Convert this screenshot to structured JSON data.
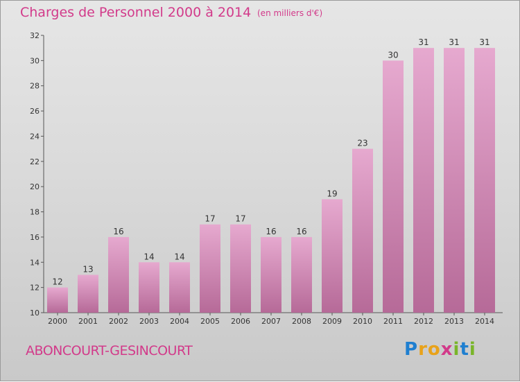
{
  "header": {
    "title": "Charges de Personnel 2000 à 2014",
    "subtitle": "(en milliers d'€)"
  },
  "footer": {
    "commune": "ABONCOURT-GESINCOURT",
    "logo": "Proxiti"
  },
  "colors": {
    "title": "#d23a8a",
    "bar_light": "#e6a9cf",
    "bar_dark": "#b66a98"
  },
  "chart_data": {
    "type": "bar",
    "title": "Charges de Personnel 2000 à 2014",
    "subtitle": "(en milliers d'€)",
    "categories": [
      "2000",
      "2001",
      "2002",
      "2003",
      "2004",
      "2005",
      "2006",
      "2007",
      "2008",
      "2009",
      "2010",
      "2011",
      "2012",
      "2013",
      "2014"
    ],
    "values": [
      12,
      13,
      16,
      14,
      14,
      17,
      17,
      16,
      16,
      19,
      23,
      30,
      31,
      31,
      31
    ],
    "ylim": [
      10,
      32
    ],
    "yticks": [
      10,
      12,
      14,
      16,
      18,
      20,
      22,
      24,
      26,
      28,
      30,
      32
    ],
    "grid": false,
    "legend": "none"
  }
}
